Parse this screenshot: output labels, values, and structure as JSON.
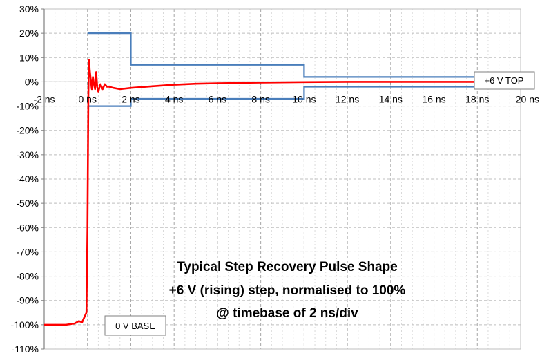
{
  "chart_data": {
    "type": "line",
    "title_lines": [
      "Typical Step Recovery Pulse Shape",
      "+6 V (rising) step, normalised to 100%",
      "@ timebase of 2 ns/div"
    ],
    "xlabel": "",
    "ylabel": "",
    "xlim": [
      -2,
      20
    ],
    "ylim": [
      -110,
      30
    ],
    "x_ticks": [
      -2,
      0,
      2,
      4,
      6,
      8,
      10,
      12,
      14,
      16,
      18,
      20
    ],
    "x_tick_labels": [
      "-2 ns",
      "0 ns",
      "2 ns",
      "4 ns",
      "6 ns",
      "8 ns",
      "10 ns",
      "12 ns",
      "14 ns",
      "16 ns",
      "18 ns",
      "20 ns"
    ],
    "y_ticks": [
      30,
      20,
      10,
      0,
      -10,
      -20,
      -30,
      -40,
      -50,
      -60,
      -70,
      -80,
      -90,
      -100,
      -110
    ],
    "y_tick_labels": [
      "30%",
      "20%",
      "10%",
      "0%",
      "-10%",
      "-20%",
      "-30%",
      "-40%",
      "-50%",
      "-60%",
      "-70%",
      "-80%",
      "-90%",
      "-100%",
      "-110%"
    ],
    "grid": true,
    "colors": {
      "pulse": "#ff0000",
      "envelope": "#4a7ebb",
      "grid": "#bfbfbf"
    },
    "series": [
      {
        "role": "pulse",
        "x": [
          -2,
          -1,
          -0.6,
          -0.4,
          -0.25,
          -0.15,
          -0.05,
          0,
          0.02,
          0.04,
          0.06,
          0.08,
          0.1,
          0.15,
          0.2,
          0.25,
          0.3,
          0.35,
          0.4,
          0.45,
          0.5,
          0.6,
          0.7,
          0.8,
          0.9,
          1.0,
          1.2,
          1.5,
          2,
          3,
          4,
          5,
          6,
          8,
          10,
          12,
          14,
          16,
          18
        ],
        "y": [
          -100,
          -100,
          -99.5,
          -98.5,
          -99,
          -97,
          -95,
          -60,
          -30,
          -5,
          5,
          9,
          5,
          1,
          -3,
          2,
          -1,
          -3,
          4,
          -2,
          -4,
          -1,
          -3,
          -1,
          -2,
          -2,
          -2.5,
          -3,
          -2.5,
          -1.8,
          -1.2,
          -0.8,
          -0.6,
          -0.3,
          -0.1,
          0,
          0,
          0,
          0
        ]
      },
      {
        "role": "upper-envelope",
        "x": [
          0,
          2,
          2,
          10,
          10,
          18
        ],
        "y": [
          20,
          20,
          7,
          7,
          2,
          2
        ]
      },
      {
        "role": "lower-envelope",
        "x": [
          0,
          2,
          2,
          10,
          10,
          18
        ],
        "y": [
          -10,
          -10,
          -7,
          -7,
          -2,
          -2
        ]
      }
    ],
    "annotations": [
      {
        "text": "+6 V TOP",
        "at": "right end of pulse at 0%"
      },
      {
        "text": "0 V BASE",
        "at": "lower-left near -100%"
      }
    ]
  }
}
